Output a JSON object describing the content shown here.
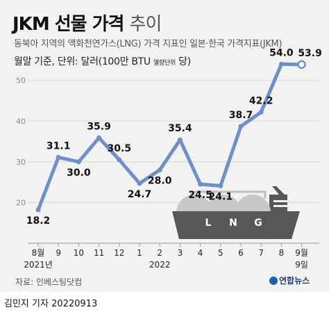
{
  "title_bold": "JKM 선물 가격",
  "title_light": "추이",
  "subtitle": "동북아 지역의 액화천연가스(LNG) 가격 지표인 일본·한국 가격지표(JKM)",
  "unit_main": "월말 기준, 단위: 달러(100만 BTU",
  "unit_small": "열량단위",
  "unit_end": " 당)",
  "source": "자료: 인베스팅닷컴",
  "logo": "연합뉴스",
  "footer": "김민지 기자  20220913",
  "ship_letters": [
    "L",
    "N",
    "G"
  ],
  "colors": {
    "line": "#6f8fc7",
    "panel": "#f2f2f2",
    "ship": "#575757",
    "tank": "#c8c8c8"
  },
  "chart_data": {
    "type": "line",
    "categories": [
      "8월",
      "9",
      "10",
      "11",
      "12",
      "1",
      "2",
      "3",
      "4",
      "5",
      "6",
      "7",
      "8",
      "9월"
    ],
    "year_labels": [
      {
        "index": 0,
        "label": "2021년"
      },
      {
        "index": 6,
        "label": "2022"
      },
      {
        "index": 13,
        "label": "9일"
      }
    ],
    "values": [
      18.2,
      31.1,
      30.0,
      35.9,
      30.5,
      24.7,
      28.0,
      35.4,
      24.5,
      24.1,
      38.7,
      42.2,
      54.0,
      53.9
    ],
    "value_labels": [
      "18.2",
      "31.1",
      "30.0",
      "35.9",
      "30.5",
      "24.7",
      "28.0",
      "35.4",
      "24.5",
      "24.1",
      "38.7",
      "42.2",
      "54.0",
      "53.9"
    ],
    "yticks": [
      20,
      30,
      40,
      50
    ],
    "ylim": [
      10,
      56
    ],
    "grid": true
  }
}
